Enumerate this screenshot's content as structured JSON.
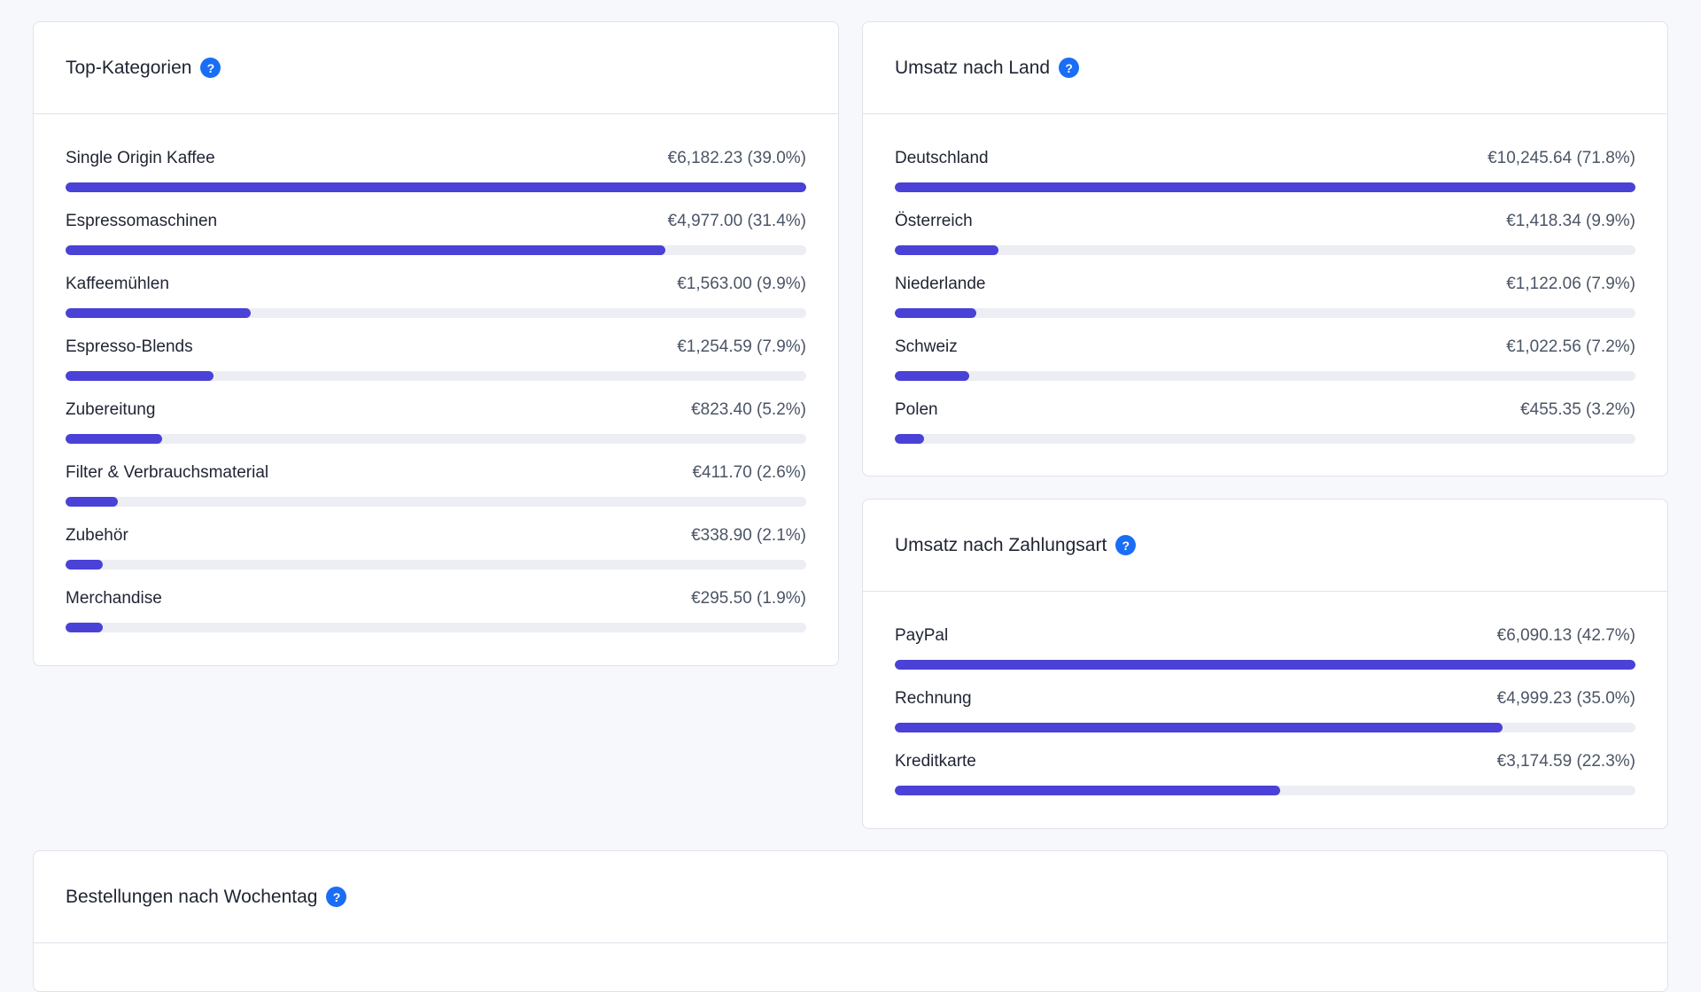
{
  "accent_color": "#4a41d6",
  "track_color": "#eceef3",
  "help_icon": "question-circle-icon",
  "top_categories": {
    "title": "Top-Kategorien",
    "help_glyph": "?",
    "items": [
      {
        "label": "Single Origin Kaffee",
        "value": "€6,182.23 (39.0%)",
        "fraction": 1.0
      },
      {
        "label": "Espressomaschinen",
        "value": "€4,977.00 (31.4%)",
        "fraction": 0.81
      },
      {
        "label": "Kaffeemühlen",
        "value": "€1,563.00 (9.9%)",
        "fraction": 0.25
      },
      {
        "label": "Espresso-Blends",
        "value": "€1,254.59 (7.9%)",
        "fraction": 0.2
      },
      {
        "label": "Zubereitung",
        "value": "€823.40 (5.2%)",
        "fraction": 0.13
      },
      {
        "label": "Filter & Verbrauchsmaterial",
        "value": "€411.70 (2.6%)",
        "fraction": 0.07
      },
      {
        "label": "Zubehör",
        "value": "€338.90 (2.1%)",
        "fraction": 0.05
      },
      {
        "label": "Merchandise",
        "value": "€295.50 (1.9%)",
        "fraction": 0.05
      }
    ]
  },
  "revenue_by_country": {
    "title": "Umsatz nach Land",
    "help_glyph": "?",
    "items": [
      {
        "label": "Deutschland",
        "value": "€10,245.64 (71.8%)",
        "fraction": 1.0
      },
      {
        "label": "Österreich",
        "value": "€1,418.34 (9.9%)",
        "fraction": 0.14
      },
      {
        "label": "Niederlande",
        "value": "€1,122.06 (7.9%)",
        "fraction": 0.11
      },
      {
        "label": "Schweiz",
        "value": "€1,022.56 (7.2%)",
        "fraction": 0.1
      },
      {
        "label": "Polen",
        "value": "€455.35 (3.2%)",
        "fraction": 0.04
      }
    ]
  },
  "revenue_by_payment": {
    "title": "Umsatz nach Zahlungsart",
    "help_glyph": "?",
    "items": [
      {
        "label": "PayPal",
        "value": "€6,090.13 (42.7%)",
        "fraction": 1.0
      },
      {
        "label": "Rechnung",
        "value": "€4,999.23 (35.0%)",
        "fraction": 0.82
      },
      {
        "label": "Kreditkarte",
        "value": "€3,174.59 (22.3%)",
        "fraction": 0.52
      }
    ]
  },
  "orders_by_weekday": {
    "title": "Bestellungen nach Wochentag",
    "help_glyph": "?"
  }
}
